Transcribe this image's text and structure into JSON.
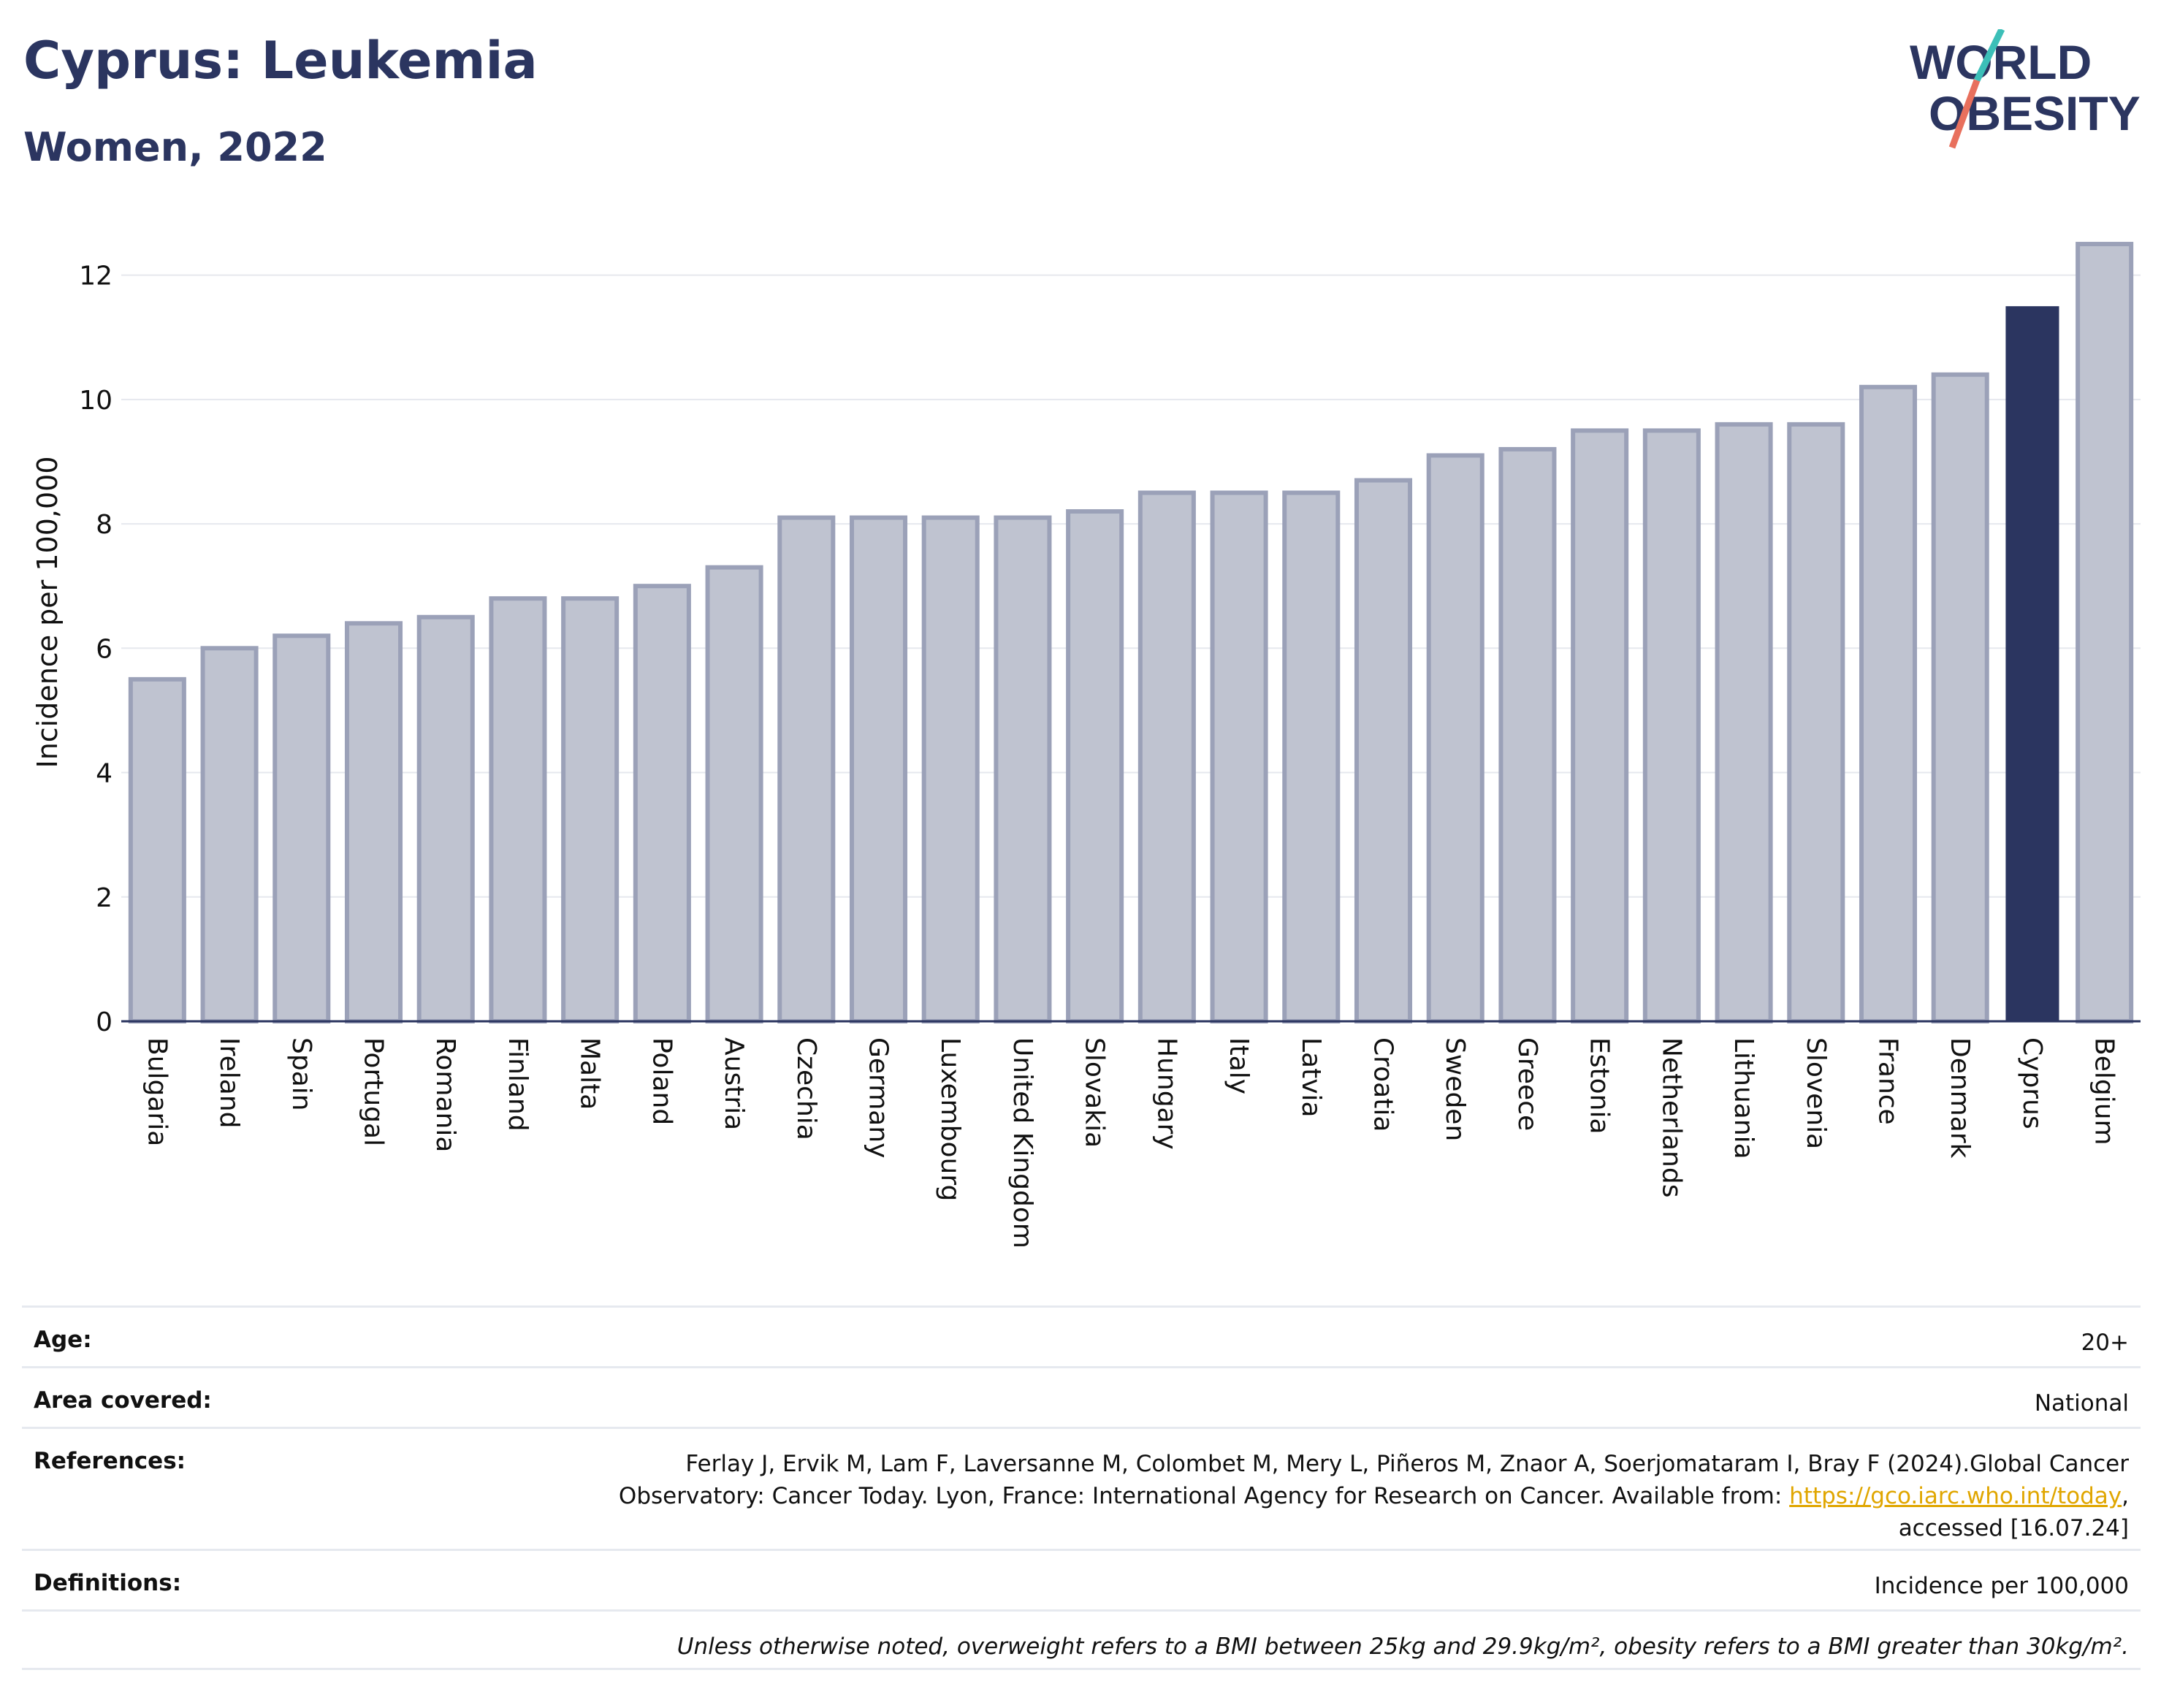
{
  "header": {
    "title": "Cyprus: Leukemia",
    "subtitle": "Women, 2022"
  },
  "logo": {
    "line1": "WORLD",
    "line2": "OBESITY",
    "colors": {
      "text": "#2b3560",
      "slash_top": "#3cbfb8",
      "slash_bottom": "#e8705d"
    }
  },
  "chart_data": {
    "type": "bar",
    "ylabel": "Incidence per 100,000",
    "ylim": [
      0,
      12.9
    ],
    "yticks": [
      0,
      2,
      4,
      6,
      8,
      10,
      12
    ],
    "grid": true,
    "highlight": "Cyprus",
    "colors": {
      "bar": "#bfc3d0",
      "bar_edge": "#9ba1b8",
      "highlight": "#2b3560",
      "grid": "#e6e8ee",
      "axis": "#2b3560"
    },
    "categories": [
      "Bulgaria",
      "Ireland",
      "Spain",
      "Portugal",
      "Romania",
      "Finland",
      "Malta",
      "Poland",
      "Austria",
      "Czechia",
      "Germany",
      "Luxembourg",
      "United Kingdom",
      "Slovakia",
      "Hungary",
      "Italy",
      "Latvia",
      "Croatia",
      "Sweden",
      "Greece",
      "Estonia",
      "Netherlands",
      "Lithuania",
      "Slovenia",
      "France",
      "Denmark",
      "Cyprus",
      "Belgium"
    ],
    "values": [
      5.5,
      6.0,
      6.2,
      6.4,
      6.5,
      6.8,
      6.8,
      7.0,
      7.3,
      8.1,
      8.1,
      8.1,
      8.1,
      8.2,
      8.5,
      8.5,
      8.5,
      8.7,
      9.1,
      9.2,
      9.5,
      9.5,
      9.6,
      9.6,
      10.2,
      10.4,
      11.5,
      12.5
    ]
  },
  "info": {
    "age_label": "Age:",
    "age_value": "20+",
    "area_label": "Area covered:",
    "area_value": "National",
    "ref_label": "References:",
    "ref_line1": "Ferlay J, Ervik M, Lam F, Laversanne M, Colombet M, Mery L, Piñeros M, Znaor A, Soerjomataram I, Bray F (2024).Global Cancer",
    "ref_line2_pre": "Observatory: Cancer Today. Lyon, France: International Agency for Research on Cancer. Available from: ",
    "ref_link": "https://gco.iarc.who.int/today",
    "ref_line2_post": ",",
    "ref_line3": "accessed [16.07.24]",
    "def_label": "Definitions:",
    "def_value": "Incidence per 100,000",
    "note": "Unless otherwise noted, overweight refers to a BMI between 25kg and 29.9kg/m², obesity refers to a BMI greater than 30kg/m²."
  }
}
